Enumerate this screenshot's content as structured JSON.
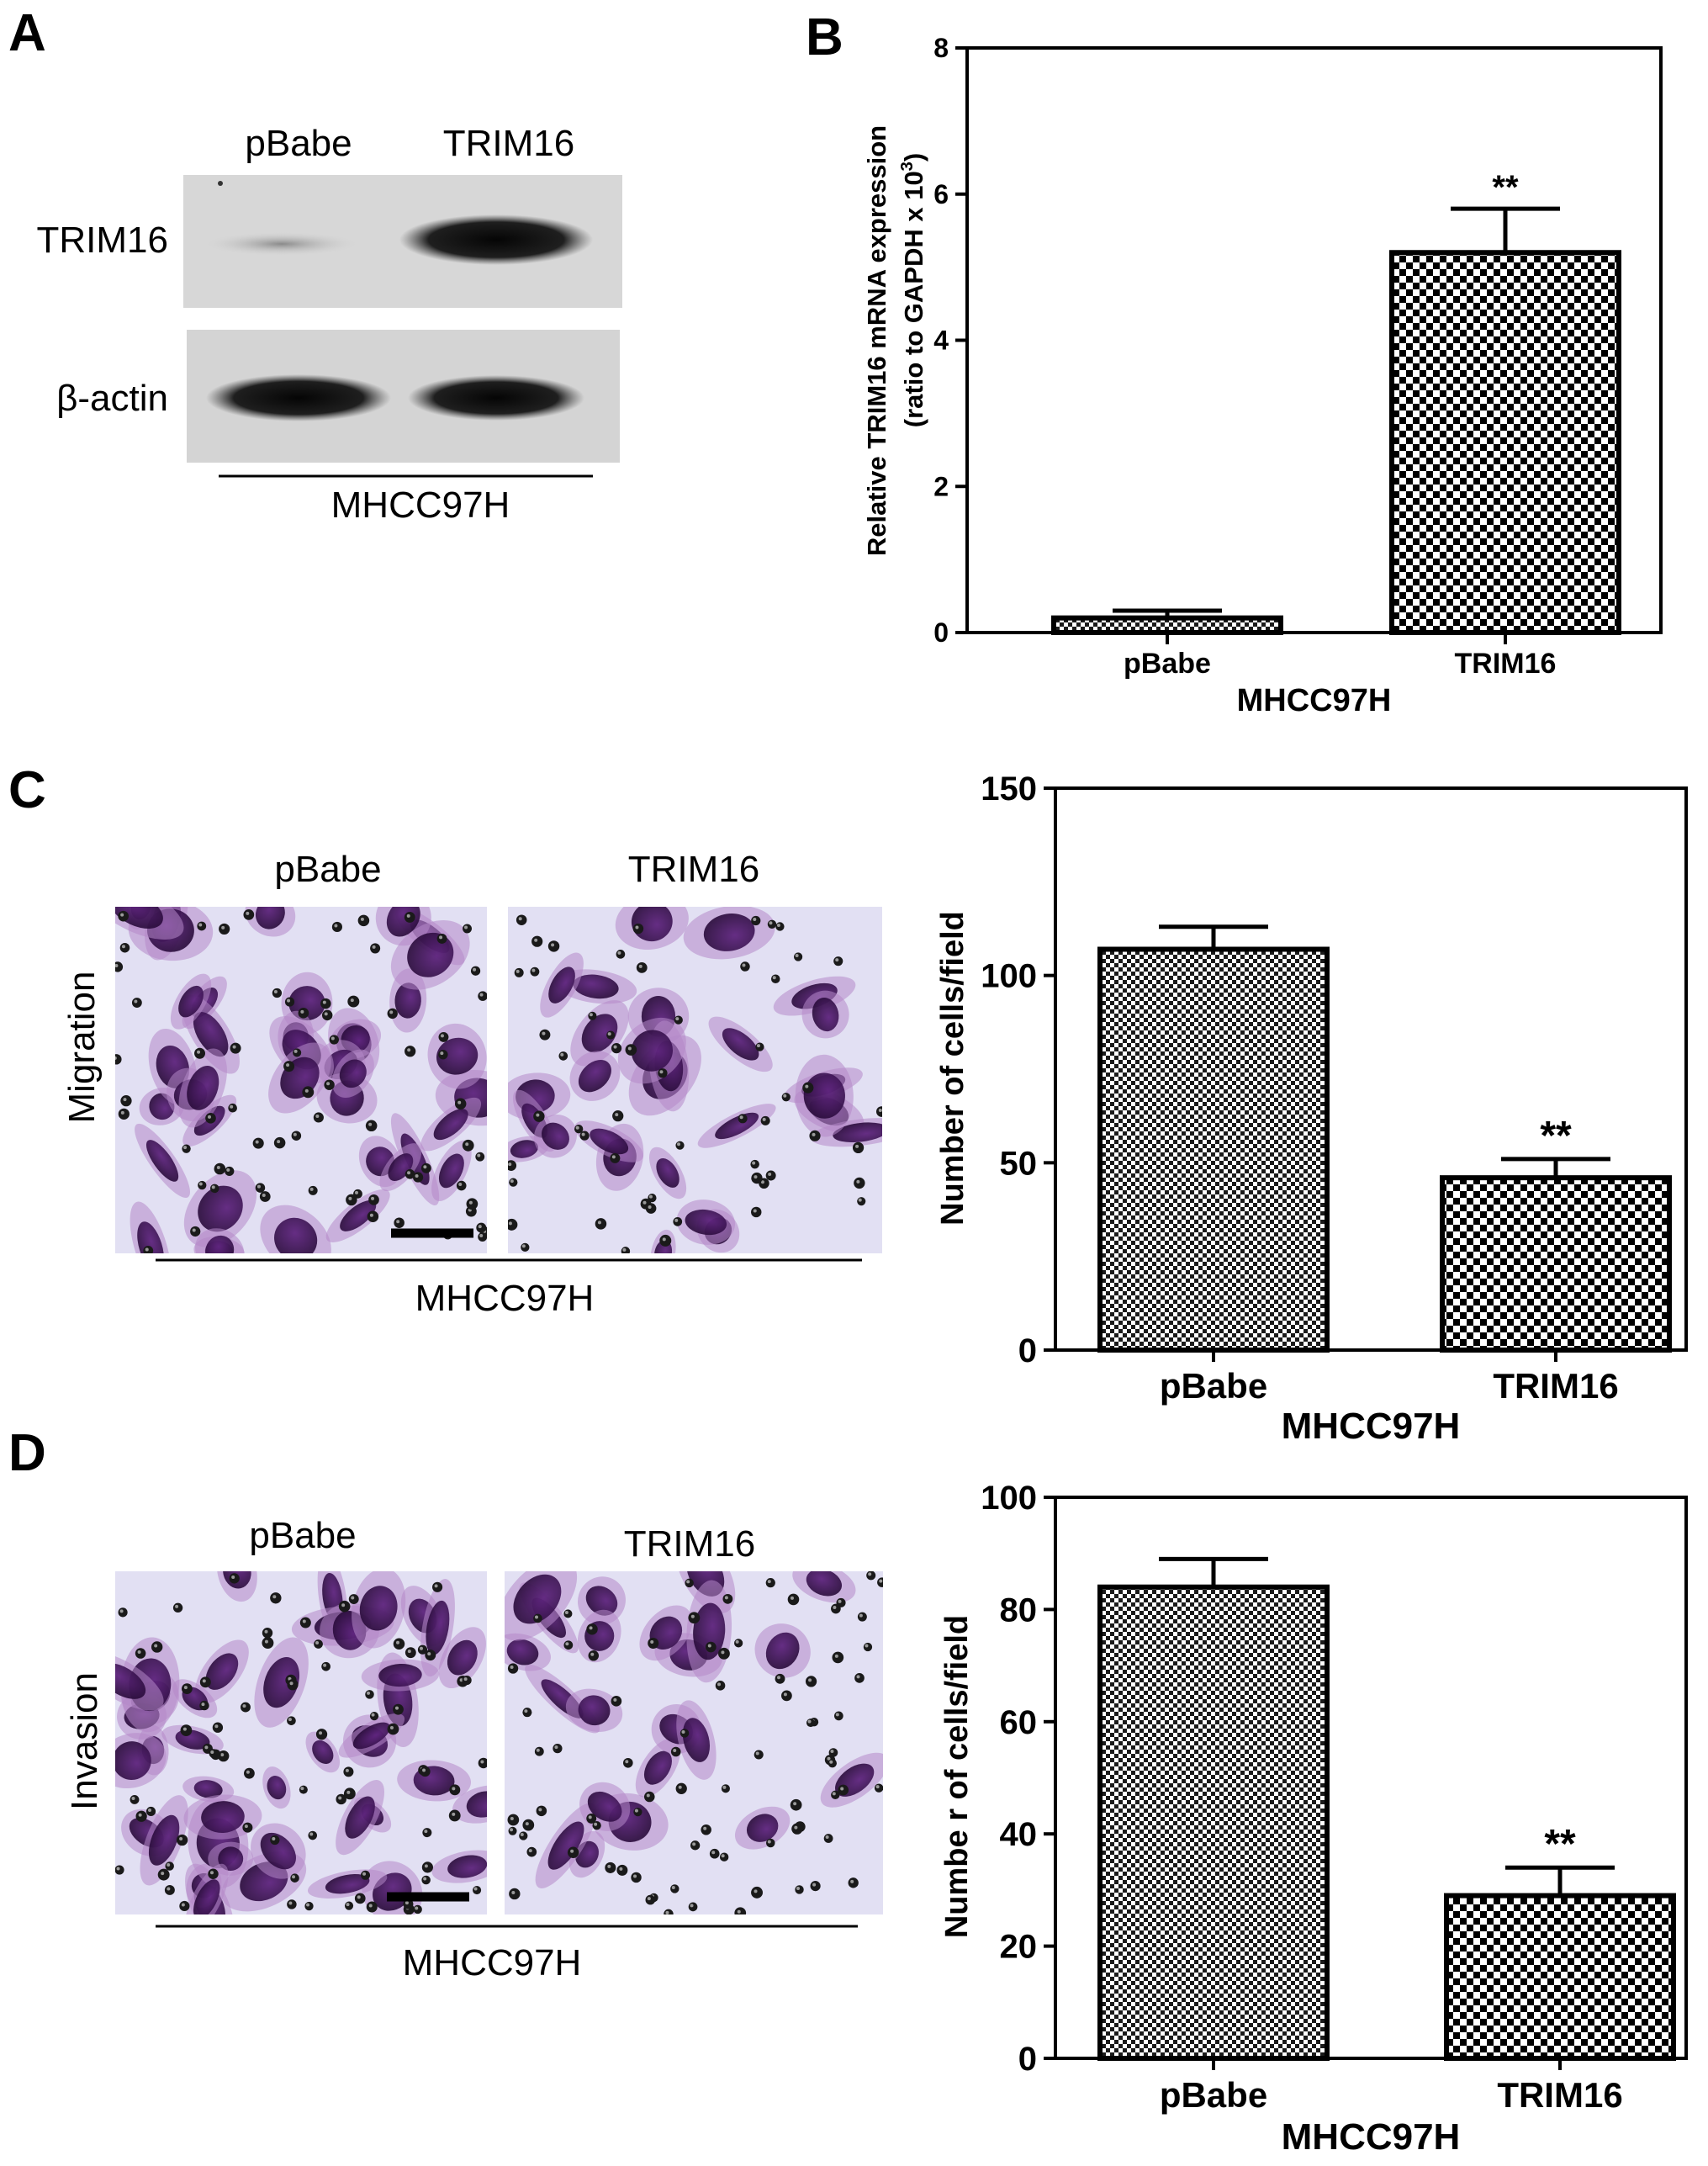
{
  "panels": {
    "A": {
      "letter": "A",
      "lanes": [
        "pBabe",
        "TRIM16"
      ],
      "rows": [
        "TRIM16",
        "β-actin"
      ],
      "cell_line": "MHCC97H"
    },
    "C": {
      "letter": "C",
      "row_label": "Migration",
      "lanes": [
        "pBabe",
        "TRIM16"
      ],
      "cell_line": "MHCC97H"
    },
    "D": {
      "letter": "D",
      "row_label": "Invasion",
      "lanes": [
        "pBabe",
        "TRIM16"
      ],
      "cell_line": "MHCC97H"
    }
  },
  "chart_data": [
    {
      "id": "B",
      "letter": "B",
      "type": "bar",
      "categories": [
        "pBabe",
        "TRIM16"
      ],
      "values": [
        0.2,
        5.2
      ],
      "errors": [
        0.1,
        0.6
      ],
      "significance": [
        "",
        "**"
      ],
      "xlabel": "MHCC97H",
      "ylabel_line1": "Relative TRIM16 mRNA expression",
      "ylabel_line2_pre": "(ratio to  GAPDH x 10",
      "ylabel_line2_sup": "3",
      "ylabel_line2_post": ")",
      "ylim": [
        0,
        8
      ],
      "yticks": [
        "0",
        "2",
        "4",
        "6",
        "8"
      ],
      "grid": false
    },
    {
      "id": "C",
      "type": "bar",
      "categories": [
        "pBabe",
        "TRIM16"
      ],
      "values": [
        107,
        46
      ],
      "errors": [
        6,
        5
      ],
      "significance": [
        "",
        "**"
      ],
      "xlabel": "MHCC97H",
      "ylabel": "Number of cells/field",
      "ylim": [
        0,
        150
      ],
      "yticks": [
        "0",
        "50",
        "100",
        "150"
      ],
      "grid": false
    },
    {
      "id": "D",
      "type": "bar",
      "categories": [
        "pBabe",
        "TRIM16"
      ],
      "values": [
        84,
        29
      ],
      "errors": [
        5,
        5
      ],
      "significance": [
        "",
        "**"
      ],
      "xlabel": "MHCC97H",
      "ylabel": "Numbe r of cells/field",
      "ylim": [
        0,
        100
      ],
      "yticks": [
        "0",
        "20",
        "40",
        "60",
        "80",
        "100"
      ],
      "grid": false
    }
  ]
}
